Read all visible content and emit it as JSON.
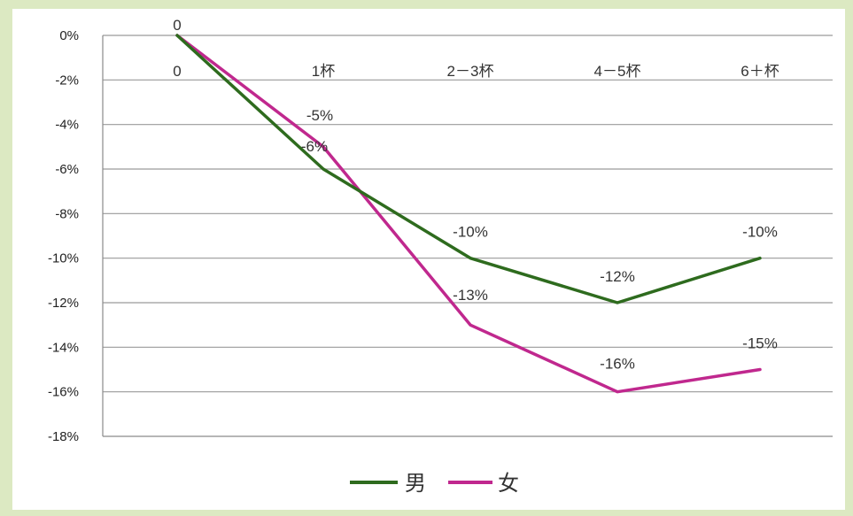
{
  "chart_data": {
    "type": "line",
    "title": "",
    "xlabel": "",
    "ylabel": "",
    "categories": [
      "0",
      "1杯",
      "2－3杯",
      "4－5杯",
      "6＋杯"
    ],
    "ylim": [
      -18,
      0
    ],
    "yticks": [
      0,
      -2,
      -4,
      -6,
      -8,
      -10,
      -12,
      -14,
      -16,
      -18
    ],
    "ytick_labels": [
      "0%",
      "-2%",
      "-4%",
      "-6%",
      "-8%",
      "-10%",
      "-12%",
      "-14%",
      "-16%",
      "-18%"
    ],
    "grid": true,
    "legend_position": "bottom",
    "series": [
      {
        "name": "男",
        "color": "#2e6b1e",
        "values": [
          0,
          -6,
          -10,
          -12,
          -10
        ],
        "labels": [
          "0",
          "-6%",
          "-10%",
          "-12%",
          "-10%"
        ]
      },
      {
        "name": "女",
        "color": "#c0288e",
        "values": [
          0,
          -5,
          -13,
          -16,
          -15
        ],
        "labels": [
          "",
          "-5%",
          "-13%",
          "-16%",
          "-15%"
        ]
      }
    ]
  }
}
